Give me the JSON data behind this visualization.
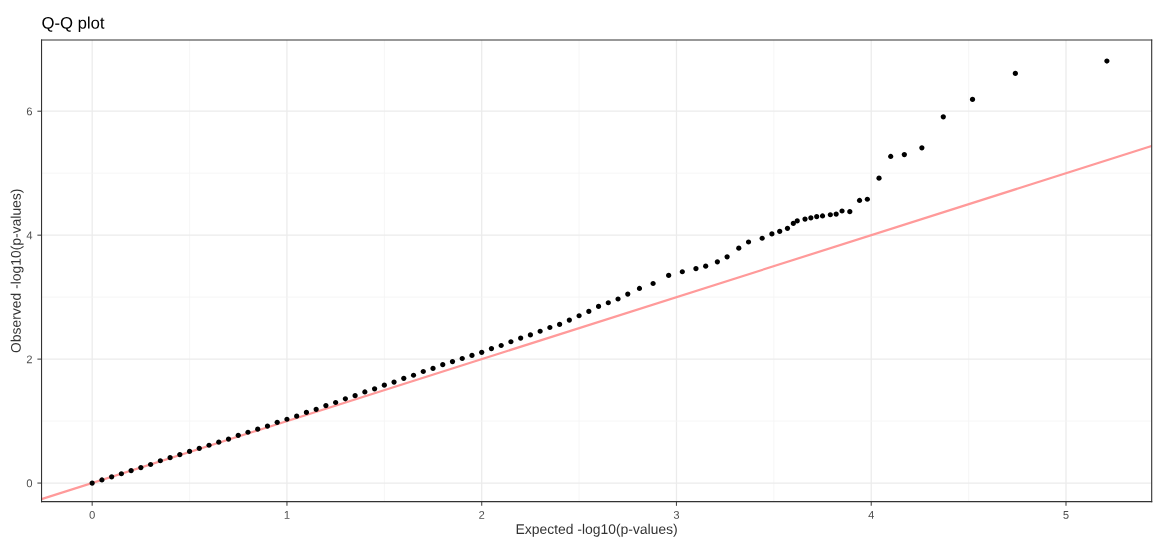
{
  "chart_data": {
    "type": "scatter",
    "title": "Q-Q plot",
    "xlabel": "Expected -log10(p-values)",
    "ylabel": "Observed -log10(p-values)",
    "xlim": [
      -0.26,
      5.44
    ],
    "ylim": [
      -0.3,
      7.15
    ],
    "xticks": [
      0,
      1,
      2,
      3,
      4,
      5
    ],
    "yticks": [
      0,
      2,
      4,
      6
    ],
    "grid": true,
    "series": [
      {
        "marker": "circle",
        "color": "#000000",
        "x": [
          0,
          0.05,
          0.1,
          0.15,
          0.2,
          0.25,
          0.3,
          0.35,
          0.4,
          0.45,
          0.5,
          0.55,
          0.6,
          0.65,
          0.7,
          0.75,
          0.8,
          0.85,
          0.9,
          0.95,
          1.0,
          1.05,
          1.1,
          1.15,
          1.2,
          1.25,
          1.3,
          1.35,
          1.4,
          1.45,
          1.5,
          1.55,
          1.6,
          1.65,
          1.7,
          1.75,
          1.8,
          1.85,
          1.9,
          1.95,
          2.0,
          2.05,
          2.1,
          2.15,
          2.2,
          2.25,
          2.3,
          2.35,
          2.4,
          2.45,
          2.5,
          2.55,
          2.6,
          2.65,
          2.7,
          2.75,
          2.81,
          2.88,
          2.96,
          3.03,
          3.1,
          3.15,
          3.21,
          3.26,
          3.32,
          3.37,
          3.44,
          3.49,
          3.53,
          3.57,
          3.6,
          3.62,
          3.66,
          3.69,
          3.72,
          3.75,
          3.79,
          3.82,
          3.85,
          3.89,
          3.94,
          3.98,
          4.04,
          4.1,
          4.17,
          4.26,
          4.37,
          4.52,
          4.74,
          5.21
        ],
        "values": [
          0,
          0.05,
          0.1,
          0.15,
          0.2,
          0.25,
          0.3,
          0.36,
          0.41,
          0.46,
          0.51,
          0.56,
          0.61,
          0.66,
          0.71,
          0.77,
          0.82,
          0.87,
          0.92,
          0.98,
          1.03,
          1.08,
          1.14,
          1.19,
          1.25,
          1.3,
          1.36,
          1.41,
          1.47,
          1.52,
          1.58,
          1.63,
          1.69,
          1.74,
          1.8,
          1.85,
          1.91,
          1.96,
          2.01,
          2.06,
          2.11,
          2.17,
          2.22,
          2.28,
          2.34,
          2.39,
          2.45,
          2.51,
          2.56,
          2.63,
          2.7,
          2.77,
          2.85,
          2.91,
          2.97,
          3.05,
          3.14,
          3.22,
          3.35,
          3.41,
          3.46,
          3.5,
          3.57,
          3.65,
          3.79,
          3.89,
          3.95,
          4.02,
          4.06,
          4.11,
          4.19,
          4.23,
          4.26,
          4.28,
          4.3,
          4.31,
          4.33,
          4.34,
          4.39,
          4.38,
          4.56,
          4.58,
          4.92,
          5.27,
          5.3,
          5.41,
          5.91,
          6.19,
          6.61,
          6.81
        ]
      },
      {
        "type": "line",
        "marker": "none",
        "color": "#ff9a9a",
        "x": [
          -0.26,
          5.44
        ],
        "values": [
          -0.26,
          5.44
        ]
      }
    ]
  }
}
